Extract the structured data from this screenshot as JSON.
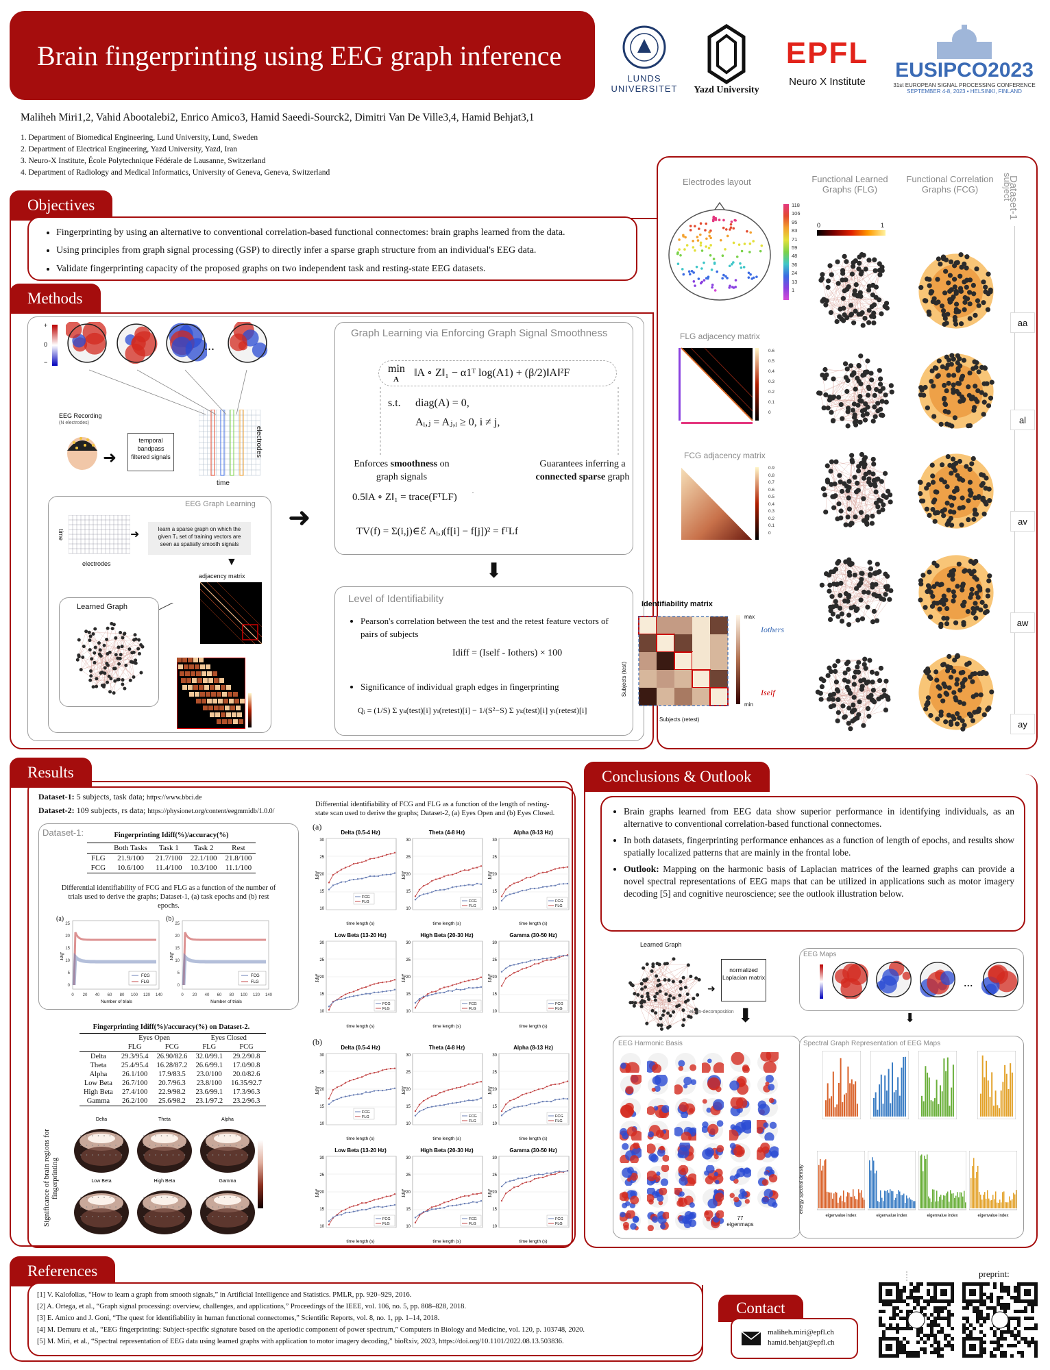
{
  "title": "Brain fingerprinting using EEG graph inference",
  "logos": {
    "lund": "LUNDS UNIVERSITET",
    "yazd": "Yazd University",
    "epfl": "EPFL",
    "neurox": "Neuro X Institute",
    "eusipco": "EUSIPCO2023",
    "eusipco_sub1": "31st EUROPEAN SIGNAL PROCESSING CONFERENCE",
    "eusipco_sub2": "SEPTEMBER 4-8, 2023 • HELSINKI, FINLAND"
  },
  "authors": "Maliheh Miri1,2, Vahid Abootalebi2, Enrico Amico3, Hamid Saeedi-Sourck2, Dimitri Van De Ville3,4, Hamid Behjat3,1",
  "affiliations": [
    "1. Department of Biomedical Engineering, Lund University, Lund, Sweden",
    "2. Department of Electrical Engineering, Yazd University, Yazd, Iran",
    "3. Neuro-X Institute, École Polytechnique Fédérale de Lausanne, Switzerland",
    "4. Department of Radiology and Medical Informatics, University of Geneva, Geneva, Switzerland"
  ],
  "objectives": {
    "heading": "Objectives",
    "items": [
      "Fingerprinting by using an alternative to conventional correlation-based functional connectomes: brain graphs learned from the data.",
      "Using principles from graph signal processing (GSP) to directly infer a sparse graph structure from an individual's EEG data.",
      "Validate fingerprinting capacity of the proposed graphs on two independent task and resting-state EEG datasets."
    ]
  },
  "right_panel": {
    "electrodes_layout": "Electrodes layout",
    "flg": "Functional Learned Graphs (FLG)",
    "fcg": "Functional Correlation Graphs (FCG)",
    "dataset_label": "Dataset-1",
    "subject_label": "subject",
    "flg_adj": "FLG adjacency matrix",
    "fcg_adj": "FCG adjacency matrix",
    "colorbar_ticks": [
      "118",
      "106",
      "95",
      "83",
      "71",
      "59",
      "48",
      "36",
      "24",
      "13",
      "1"
    ],
    "scale_min": "0",
    "scale_max": "1",
    "subjects": [
      "aa",
      "al",
      "av",
      "aw",
      "ay"
    ],
    "flg_ticks": [
      "0.6",
      "0.5",
      "0.4",
      "0.3",
      "0.2",
      "0.1",
      "0"
    ],
    "fcg_ticks": [
      "0.9",
      "0.8",
      "0.7",
      "0.6",
      "0.5",
      "0.4",
      "0.3",
      "0.2",
      "0.1",
      "0"
    ]
  },
  "methods": {
    "heading": "Methods",
    "eeg_recording": "EEG Recording",
    "n_electrodes": "(N electrodes)",
    "temporal": "temporal bandpass filtered signals",
    "electrodes": "electrodes",
    "time": "time",
    "eeg_graph_learning": "EEG Graph Learning",
    "learn_text": "learn a sparse graph on which the given T₁ set of training vectors are seen as spatially smooth signals",
    "adjacency_matrix": "adjacency matrix",
    "learned_graph": "Learned Graph",
    "gl_title": "Graph Learning via Enforcing Graph Signal Smoothness",
    "opt_min": "min",
    "opt_var": "A",
    "opt_obj": "‖A ∘ Z‖₁ − α1ᵀ log(A1) + (β/2)‖A‖²F",
    "st": "s.t.",
    "c1": "diag(A) = 0,",
    "c2": "Aᵢ,ⱼ = Aⱼ,ᵢ ≥ 0,  i ≠ j,",
    "smooth_a": "Enforces",
    "smooth_b": "smoothness",
    "smooth_c": "on graph signals",
    "sparse_a": "Guarantees inferring a",
    "sparse_b": "connected sparse",
    "sparse_c": "graph",
    "trace_eq": "0.5‖A ∘ Z‖₁ = trace(FᵀLF)",
    "tv_eq": "TV(f) = Σ(i,j)∈ℰ Aᵢ,ⱼ(f[i] − f[j])² = fᵀLf",
    "loi_title": "Level of Identifiability",
    "loi_b1": "Pearson's correlation between the test and the retest feature vectors of pairs of subjects",
    "idiff_eq": "Idiff = (Iself - Iothers) × 100",
    "loi_b2": "Significance of individual graph edges in fingerprinting",
    "q_eq": "Qᵢ = (1/S) Σ yₖ(test)[i] yₗ(retest)[i] − 1/(S²−S) Σ yₖ(test)[i] yₗ(retest)[i]",
    "id_matrix": "Identifiability matrix",
    "subjects_test": "Subjects (test)",
    "subjects_retest": "Subjects (retest)",
    "max": "max",
    "min": "min",
    "iothers": "Iothers",
    "iself": "Iself",
    "colorbar_plus": "+",
    "colorbar_zero": "0",
    "colorbar_minus": "−",
    "dots": "..."
  },
  "results": {
    "heading": "Results",
    "ds1_label": "Dataset-1:",
    "ds1_text": "5 subjects, task data;",
    "ds1_url": "https://www.bbci.de",
    "ds2_label": "Dataset-2:",
    "ds2_text": "109 subjects, rs data;",
    "ds2_url": "https://physionet.org/content/eegmmidb/1.0.0/",
    "ds1_box": "Dataset-1:",
    "t1_title": "Fingerprinting Idiff(%)/accuracy(%)",
    "t1_cols": [
      "",
      "Both Tasks",
      "Task 1",
      "Task 2",
      "Rest"
    ],
    "t1_rows": [
      [
        "FLG",
        "21.9/100",
        "21.7/100",
        "22.1/100",
        "21.8/100"
      ],
      [
        "FCG",
        "10.6/100",
        "11.4/100",
        "10.3/100",
        "11.1/100"
      ]
    ],
    "t1_caption": "Differential identifiability of FCG and FLG as a function of the number of trials used to derive the graphs; Dataset-1, (a) task epochs and (b) rest epochs.",
    "trials_xlabel": "Number of trials",
    "t2_title": "Fingerprinting Idiff(%)/accuracy(%) on Dataset-2.",
    "t2_groups": [
      "Eyes Open",
      "Eyes Closed"
    ],
    "t2_cols": [
      "",
      "FLG",
      "FCG",
      "FLG",
      "FCG"
    ],
    "t2_rows": [
      [
        "Delta",
        "29.3/95.4",
        "26.90/82.6",
        "32.0/99.1",
        "29.2/90.8"
      ],
      [
        "Theta",
        "25.4/95.4",
        "16.28/87.2",
        "26.6/99.1",
        "17.0/90.8"
      ],
      [
        "Alpha",
        "26.1/100",
        "17.9/83.5",
        "23.0/100",
        "20.0/82.6"
      ],
      [
        "Low Beta",
        "26.7/100",
        "20.7/96.3",
        "23.8/100",
        "16.35/92.7"
      ],
      [
        "High Beta",
        "27.4/100",
        "22.9/98.2",
        "23.6/99.1",
        "17.3/96.3"
      ],
      [
        "Gamma",
        "26.2/100",
        "25.6/98.2",
        "23.1/97.2",
        "23.2/96.3"
      ]
    ],
    "sig_label": "Significance of brain regions for fingerprinting",
    "bands_top": [
      "Delta",
      "Theta",
      "Alpha"
    ],
    "bands_bottom": [
      "Low Beta",
      "High Beta",
      "Gamma"
    ],
    "diff_caption": "Differential identifiability of FCG and FLG as a function of the length of resting-state scan used to derive the graphs; Dataset-2, (a) Eyes Open and (b) Eyes Closed.",
    "panel_a": "(a)",
    "panel_b": "(b)",
    "band_titles": [
      "Delta (0.5-4 Hz)",
      "Theta (4-8 Hz)",
      "Alpha (8-13 Hz)",
      "Low Beta (13-20 Hz)",
      "High Beta (20-30 Hz)",
      "Gamma (30-50 Hz)"
    ],
    "time_xlabel": "time length (s)",
    "legend_fcg": "FCG",
    "legend_flg": "FLG",
    "ylabel": "Idiff"
  },
  "conclusions": {
    "heading": "Conclusions & Outlook",
    "items": [
      "Brain graphs learned from EEG data show superior performance in identifying individuals, as an alternative to conventional correlation-based functional connectomes.",
      "In both datasets, fingerprinting performance enhances as a function of length of epochs, and results show spatially localized patterns that are mainly in the frontal lobe."
    ],
    "outlook_label": "Outlook:",
    "outlook_text": "Mapping on the harmonic basis of Laplacian matrices of the learned graphs can provide a novel spectral representations of EEG maps that can be utilized in applications such as motor imagery decoding [5] and cognitive neuroscience; see the outlook illustration below.",
    "learned_graph": "Learned Graph",
    "norm_lap": "normalized Laplacian matrix",
    "eigen": "eigen-decomposition",
    "eeg_maps": "EEG Maps",
    "harmonic": "EEG Harmonic Basis",
    "spectral": "Spectral Graph Representation of EEG Maps",
    "eigenmaps": "77 eigenmaps",
    "esd": "energy spectral density",
    "eig_index": "eigenvalue index"
  },
  "references": {
    "heading": "References",
    "items": [
      "[1] V. Kalofolias, “How to learn a graph from smooth signals,” in Artificial Intelligence and Statistics. PMLR, pp. 920–929, 2016.",
      "[2] A. Ortega, et al., “Graph signal processing: overview, challenges, and applications,” Proceedings of the IEEE, vol. 106, no. 5, pp. 808–828, 2018.",
      "[3] E. Amico and J. Goni, “The quest for identifiability in human functional connectomes,” Scientific Reports, vol. 8, no. 1, pp. 1–14, 2018.",
      "[4] M. Demuru et al., “EEG fingerprinting: Subject-specific signature based on the aperiodic component of power spectrum,” Computers in Biology and Medicine, vol. 120, p. 103748, 2020.",
      "[5] M. Miri, et al., “Spectral representation of EEG data using learned graphs with application to motor imagery decoding,” bioRxiv, 2023, https://doi.org/10.1101/2022.08.13.503836."
    ]
  },
  "contact": {
    "heading": "Contact",
    "email1": "maliheh.miri@epfl.ch",
    "email2": "hamid.behjat@epfl.ch",
    "preprint": "preprint:"
  },
  "colors": {
    "accent": "#a50d0d",
    "fcg_line": "#6a7fb5",
    "flg_line": "#c44a4a"
  }
}
